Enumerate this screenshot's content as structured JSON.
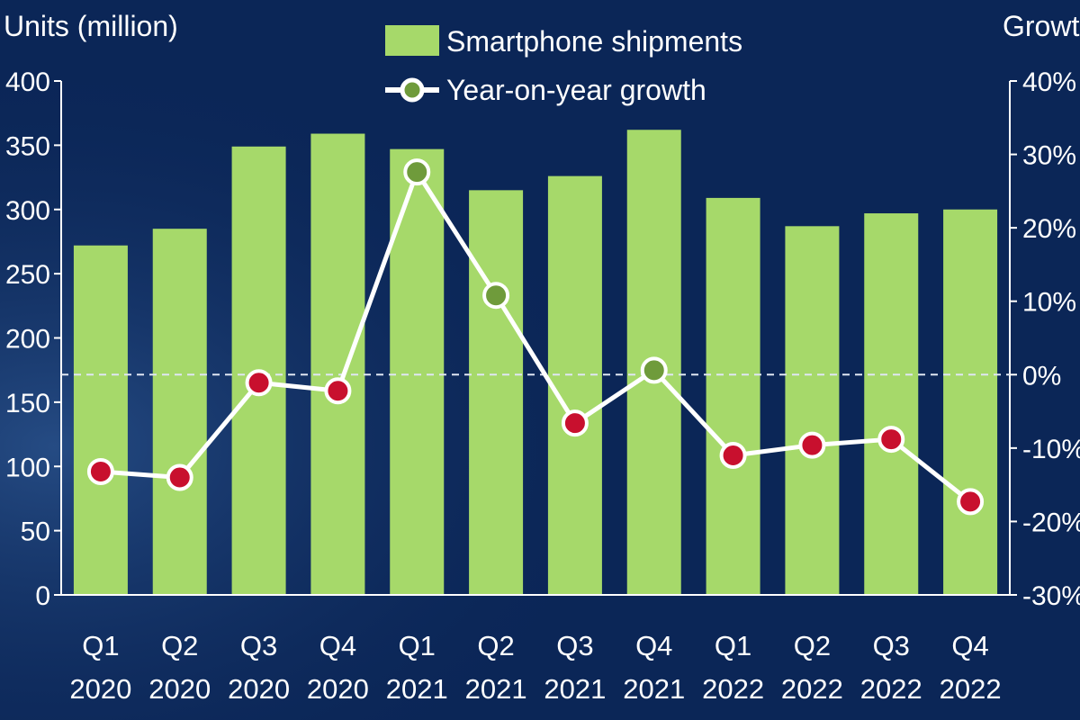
{
  "chart_data": {
    "type": "bar",
    "title": "",
    "left_axis": {
      "label": "Units (million)",
      "ylim": [
        0,
        400
      ],
      "ticks": [
        "0",
        "50",
        "100",
        "150",
        "200",
        "250",
        "300",
        "350",
        "400"
      ]
    },
    "right_axis": {
      "label": "Growth",
      "ylim": [
        -30,
        40
      ],
      "ticks": [
        "-30%",
        "-20%",
        "-10%",
        "0%",
        "10%",
        "20%",
        "30%",
        "40%"
      ]
    },
    "categories": [
      "Q1 2020",
      "Q2 2020",
      "Q3 2020",
      "Q4 2020",
      "Q1 2021",
      "Q2 2021",
      "Q3 2021",
      "Q4 2021",
      "Q1 2022",
      "Q2 2022",
      "Q3 2022",
      "Q4 2022"
    ],
    "category_lines": [
      [
        "Q1",
        "2020"
      ],
      [
        "Q2",
        "2020"
      ],
      [
        "Q3",
        "2020"
      ],
      [
        "Q4",
        "2020"
      ],
      [
        "Q1",
        "2021"
      ],
      [
        "Q2",
        "2021"
      ],
      [
        "Q3",
        "2021"
      ],
      [
        "Q4",
        "2021"
      ],
      [
        "Q1",
        "2022"
      ],
      [
        "Q2",
        "2022"
      ],
      [
        "Q3",
        "2022"
      ],
      [
        "Q4",
        "2022"
      ]
    ],
    "series": [
      {
        "name": "Smartphone shipments",
        "type": "bar",
        "axis": "left",
        "color": "#a6d96a",
        "values": [
          272,
          285,
          349,
          359,
          347,
          315,
          326,
          362,
          309,
          287,
          297,
          300
        ]
      },
      {
        "name": "Year-on-year growth",
        "type": "line",
        "axis": "right",
        "line_color": "#ffffff",
        "positive_marker_color": "#6f9b3b",
        "negative_marker_color": "#c8102e",
        "values": [
          -13.2,
          -14.0,
          -1.1,
          -2.2,
          27.6,
          10.8,
          -6.6,
          0.6,
          -11.0,
          -9.6,
          -8.8,
          -17.3
        ]
      }
    ],
    "zero_line": {
      "axis": "right",
      "value": 0,
      "style": "dashed"
    },
    "legend": {
      "placement": "top-center"
    },
    "grid": false
  }
}
